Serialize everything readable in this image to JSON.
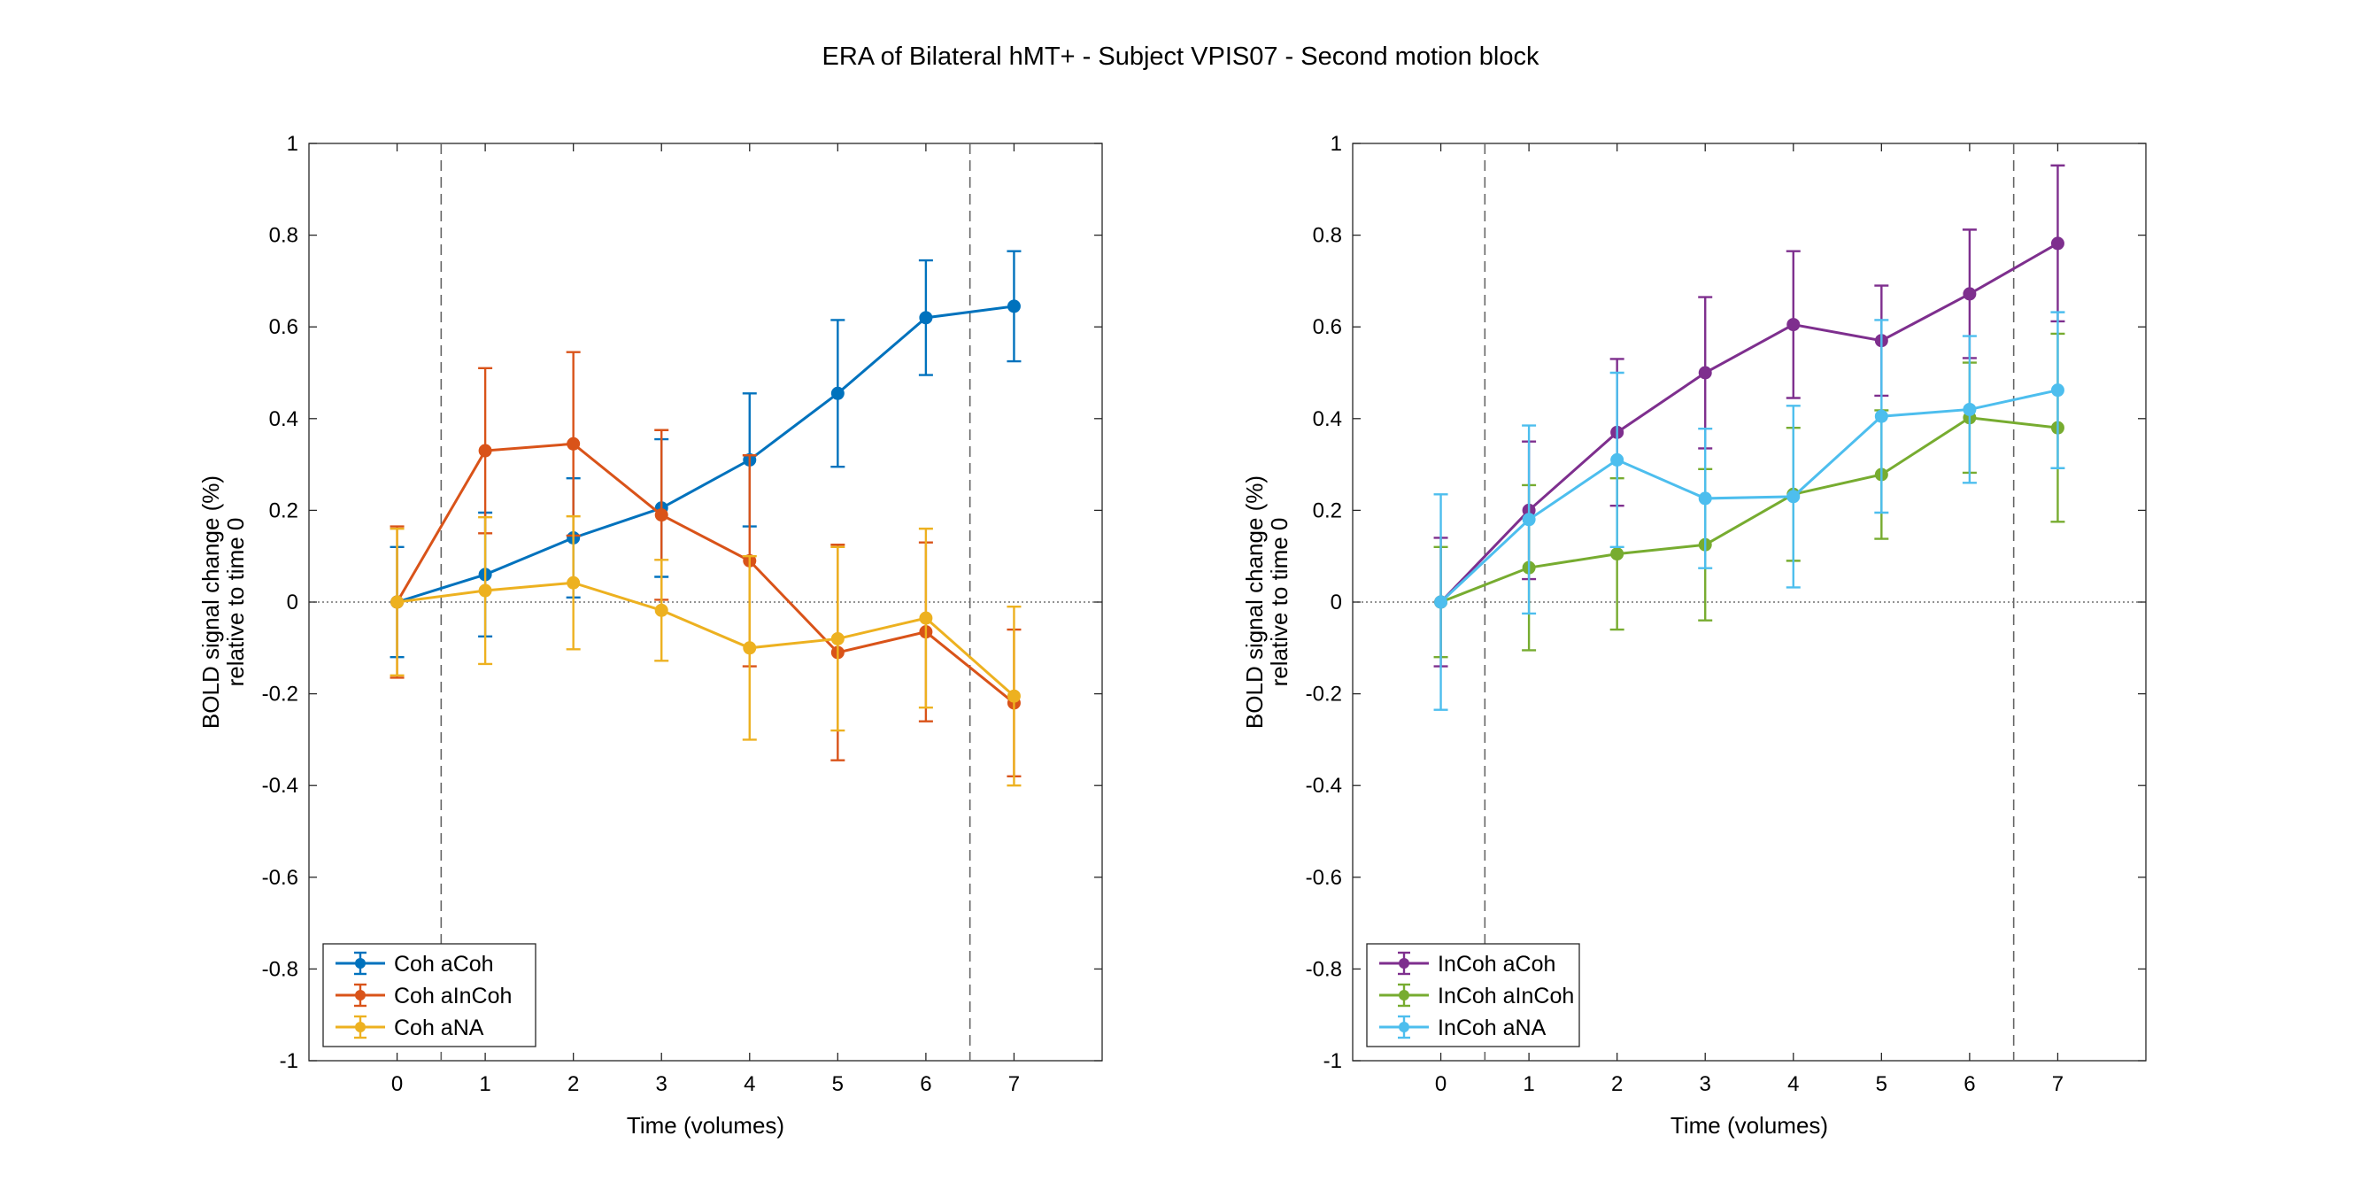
{
  "figure": {
    "title": "ERA of Bilateral hMT+ - Subject VPIS07 - Second motion block"
  },
  "chart_data": [
    {
      "type": "line",
      "title": "",
      "xlabel": "Time (volumes)",
      "ylabel": "BOLD signal change (%)",
      "ylabel2": "relative to time 0",
      "xlim": [
        -1,
        8
      ],
      "ylim": [
        -1,
        1
      ],
      "xticks": [
        0,
        1,
        2,
        3,
        4,
        5,
        6,
        7
      ],
      "yticks": [
        -1,
        -0.8,
        -0.6,
        -0.4,
        -0.2,
        0,
        0.2,
        0.4,
        0.6,
        0.8,
        1
      ],
      "ytick_labels": [
        "-1",
        "-0.8",
        "-0.6",
        "-0.4",
        "-0.2",
        "0",
        "0.2",
        "0.4",
        "0.6",
        "0.8",
        "1"
      ],
      "vlines": [
        0.5,
        6.5
      ],
      "zero_line": true,
      "grid": false,
      "legend_position": "bottom-left",
      "x": [
        0,
        1,
        2,
        3,
        4,
        5,
        6,
        7
      ],
      "series": [
        {
          "name": "Coh aCoh",
          "color": "#0072BD",
          "values": [
            0,
            0.06,
            0.14,
            0.205,
            0.31,
            0.455,
            0.62,
            0.645
          ],
          "errors": [
            0.12,
            0.135,
            0.13,
            0.15,
            0.145,
            0.16,
            0.125,
            0.12
          ]
        },
        {
          "name": "Coh aInCoh",
          "color": "#D95319",
          "values": [
            0,
            0.33,
            0.345,
            0.19,
            0.09,
            -0.11,
            -0.065,
            -0.22
          ],
          "errors": [
            0.165,
            0.18,
            0.2,
            0.185,
            0.23,
            0.235,
            0.195,
            0.16
          ]
        },
        {
          "name": "Coh aNA",
          "color": "#EDB120",
          "values": [
            0,
            0.025,
            0.042,
            -0.018,
            -0.1,
            -0.08,
            -0.035,
            -0.205
          ],
          "errors": [
            0.16,
            0.16,
            0.145,
            0.11,
            0.2,
            0.2,
            0.195,
            0.195
          ]
        }
      ]
    },
    {
      "type": "line",
      "title": "",
      "xlabel": "Time (volumes)",
      "ylabel": "BOLD signal change (%)",
      "ylabel2": "relative to time 0",
      "xlim": [
        -1,
        8
      ],
      "ylim": [
        -1,
        1
      ],
      "xticks": [
        0,
        1,
        2,
        3,
        4,
        5,
        6,
        7
      ],
      "yticks": [
        -1,
        -0.8,
        -0.6,
        -0.4,
        -0.2,
        0,
        0.2,
        0.4,
        0.6,
        0.8,
        1
      ],
      "ytick_labels": [
        "-1",
        "-0.8",
        "-0.6",
        "-0.4",
        "-0.2",
        "0",
        "0.2",
        "0.4",
        "0.6",
        "0.8",
        "1"
      ],
      "vlines": [
        0.5,
        6.5
      ],
      "zero_line": true,
      "grid": false,
      "legend_position": "bottom-left",
      "x": [
        0,
        1,
        2,
        3,
        4,
        5,
        6,
        7
      ],
      "series": [
        {
          "name": "InCoh aCoh",
          "color": "#7E2F8E",
          "values": [
            0,
            0.2,
            0.37,
            0.5,
            0.605,
            0.57,
            0.672,
            0.782
          ],
          "errors": [
            0.14,
            0.15,
            0.16,
            0.165,
            0.16,
            0.12,
            0.14,
            0.17
          ]
        },
        {
          "name": "InCoh aInCoh",
          "color": "#77AC30",
          "values": [
            0,
            0.075,
            0.105,
            0.125,
            0.235,
            0.278,
            0.402,
            0.38
          ],
          "errors": [
            0.12,
            0.18,
            0.165,
            0.165,
            0.145,
            0.14,
            0.12,
            0.205
          ]
        },
        {
          "name": "InCoh aNA",
          "color": "#4DBEEE",
          "values": [
            0,
            0.18,
            0.31,
            0.226,
            0.23,
            0.405,
            0.42,
            0.462
          ],
          "errors": [
            0.235,
            0.205,
            0.19,
            0.152,
            0.198,
            0.21,
            0.16,
            0.17
          ]
        }
      ]
    }
  ]
}
